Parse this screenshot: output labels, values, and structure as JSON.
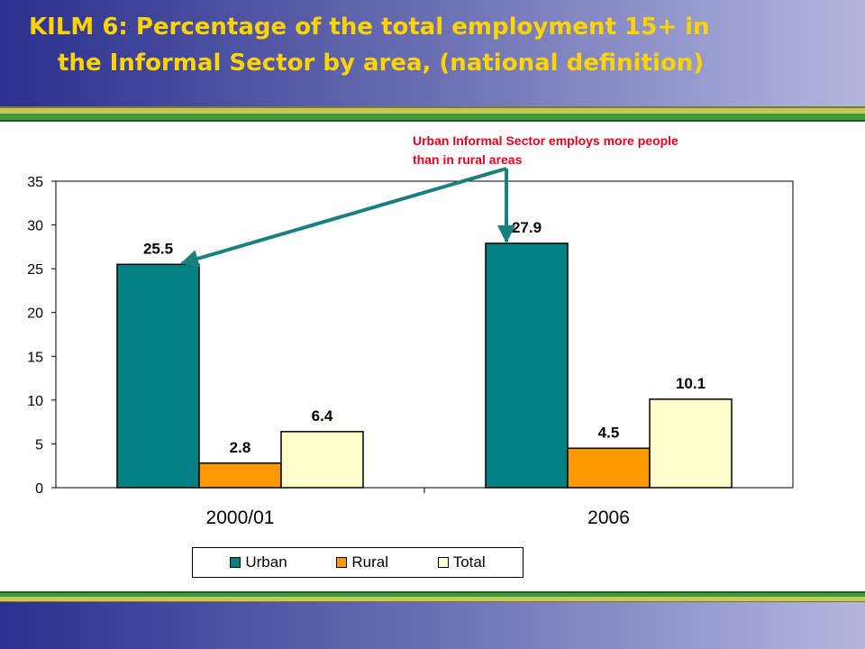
{
  "slide": {
    "title_line1": "KILM 6: Percentage of the total employment 15+ in",
    "title_line2": "the Informal Sector by area, (national definition)"
  },
  "annotation": {
    "line1": "Urban Informal Sector employs more people",
    "line2": "than in rural areas"
  },
  "colors": {
    "title_text": "#ffd400",
    "urban": "#008080",
    "rural": "#ff9900",
    "total": "#ffffcc",
    "annotation": "#e8001c",
    "arrow": "#1a7f7f"
  },
  "chart_data": {
    "type": "bar",
    "categories": [
      "2000/01",
      "2006"
    ],
    "series": [
      {
        "name": "Urban",
        "values": [
          25.5,
          27.9
        ]
      },
      {
        "name": "Rural",
        "values": [
          2.8,
          4.5
        ]
      },
      {
        "name": "Total",
        "values": [
          6.4,
          10.1
        ]
      }
    ],
    "value_labels": [
      [
        "25.5",
        "27.9"
      ],
      [
        "2.8",
        "4.5"
      ],
      [
        "6.4",
        "10.1"
      ]
    ],
    "y_ticks": [
      "0",
      "5",
      "10",
      "15",
      "20",
      "25",
      "30",
      "35"
    ],
    "ylim": [
      0,
      35
    ],
    "grid": false,
    "legend_position": "bottom"
  }
}
